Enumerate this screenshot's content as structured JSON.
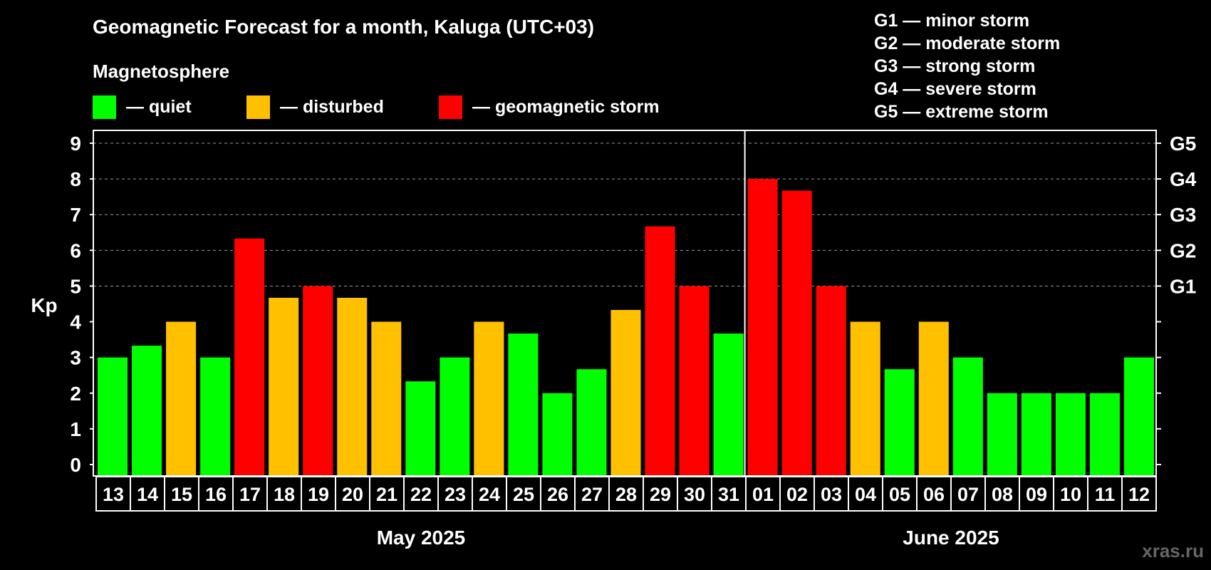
{
  "chart_data": {
    "type": "bar",
    "title": "Geomagnetic Forecast for a month, Kaluga (UTC+03)",
    "legend_title": "Magnetosphere",
    "legend": [
      {
        "label": "— quiet",
        "color": "#00ff00"
      },
      {
        "label": "— disturbed",
        "color": "#ffc000"
      },
      {
        "label": "— geomagnetic storm",
        "color": "#ff0000"
      }
    ],
    "storm_scale": [
      "G1 — minor storm",
      "G2 — moderate storm",
      "G3 — strong storm",
      "G4 — severe storm",
      "G5 — extreme storm"
    ],
    "ylabel": "Kp",
    "ylim": [
      0,
      9
    ],
    "yticks": [
      "0",
      "1",
      "2",
      "3",
      "4",
      "5",
      "6",
      "7",
      "8",
      "9"
    ],
    "right_ticks": [
      {
        "kp": 5,
        "label": "G1"
      },
      {
        "kp": 6,
        "label": "G2"
      },
      {
        "kp": 7,
        "label": "G3"
      },
      {
        "kp": 8,
        "label": "G4"
      },
      {
        "kp": 9,
        "label": "G5"
      }
    ],
    "grid": "dashed at storm levels",
    "months": [
      {
        "label": "May 2025",
        "first_index": 0,
        "last_index": 18
      },
      {
        "label": "June 2025",
        "first_index": 19,
        "last_index": 30
      }
    ],
    "categories": [
      "13",
      "14",
      "15",
      "16",
      "17",
      "18",
      "19",
      "20",
      "21",
      "22",
      "23",
      "24",
      "25",
      "26",
      "27",
      "28",
      "29",
      "30",
      "31",
      "01",
      "02",
      "03",
      "04",
      "05",
      "06",
      "07",
      "08",
      "09",
      "10",
      "11",
      "12"
    ],
    "values": [
      3,
      3.33,
      4,
      3,
      6.33,
      4.67,
      5,
      4.67,
      4,
      2.33,
      3,
      4,
      3.67,
      2,
      2.67,
      4.33,
      6.67,
      5,
      3.67,
      8,
      7.67,
      5,
      4,
      2.67,
      4,
      3,
      2,
      2,
      2,
      2,
      3
    ],
    "level_colors": {
      "quiet": "#00ff00",
      "disturbed": "#ffc000",
      "storm": "#ff0000"
    }
  },
  "watermark": "xras.ru"
}
